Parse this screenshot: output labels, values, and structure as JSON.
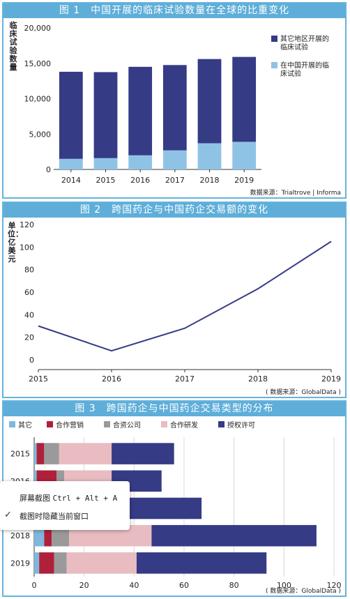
{
  "chart_data": [
    {
      "type": "bar",
      "title": "图 1　中国开展的临床试验数量在全球的比重变化",
      "ylabel": "临床试验数量",
      "categories": [
        "2014",
        "2015",
        "2016",
        "2017",
        "2018",
        "2019"
      ],
      "series": [
        {
          "name": "在中国开展的临床试验",
          "values": [
            1500,
            1600,
            2000,
            2700,
            3700,
            3900
          ],
          "color": "#8fc3e6"
        },
        {
          "name": "其它地区开展的临床试验",
          "values": [
            12300,
            12150,
            12500,
            12050,
            11900,
            12000
          ],
          "color": "#363b86"
        }
      ],
      "yticks": [
        "0",
        "5,000",
        "10,000",
        "15,000",
        "20,000"
      ],
      "ylim": [
        0,
        20000
      ],
      "stacked": true,
      "source": "数据来源：Trialtrove | Informa"
    },
    {
      "type": "line",
      "title": "图 2　跨国药企与中国药企交易额的变化",
      "ylabel": "单位：亿美元",
      "x": [
        "2015",
        "2016",
        "2017",
        "2018",
        "2019"
      ],
      "series": [
        {
          "values": [
            30,
            8,
            28,
            63,
            105
          ],
          "color": "#363b86"
        }
      ],
      "yticks": [
        "0",
        "20",
        "40",
        "60",
        "80",
        "100",
        "120"
      ],
      "ylim": [
        0,
        120
      ],
      "source": "( 数据来源：GlobalData )"
    },
    {
      "type": "bar",
      "orientation": "horizontal",
      "title": "图 3　跨国药企与中国药企交易类型的分布",
      "categories": [
        "2015",
        "2016",
        "2017",
        "2018",
        "2019"
      ],
      "series": [
        {
          "name": "其它",
          "values": [
            1,
            1,
            1,
            4,
            2
          ],
          "color": "#7fb7dd"
        },
        {
          "name": "合作营销",
          "values": [
            3,
            8,
            2,
            3,
            6
          ],
          "color": "#b0203a"
        },
        {
          "name": "合资公司",
          "values": [
            6,
            3,
            2,
            7,
            5
          ],
          "color": "#9a9a9a"
        },
        {
          "name": "合作研发",
          "values": [
            21,
            19,
            33,
            33,
            28
          ],
          "color": "#e8bcc0"
        },
        {
          "name": "授权许可",
          "values": [
            25,
            20,
            29,
            66,
            52
          ],
          "color": "#363b86"
        }
      ],
      "xticks": [
        "0",
        "20",
        "40",
        "60",
        "80",
        "100",
        "120"
      ],
      "xlim": [
        0,
        120
      ],
      "stacked": true,
      "source": "( 数据来源：GlobalData )"
    }
  ],
  "popup": {
    "screenshot_label": "屏幕截图",
    "screenshot_shortcut": "Ctrl + Alt + A",
    "hide_window_label": "截图时隐藏当前窗口",
    "check_mark": "✓"
  }
}
